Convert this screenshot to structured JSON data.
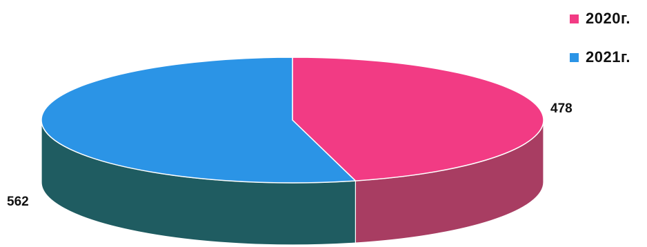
{
  "chart_data": {
    "type": "pie",
    "style": "3d",
    "title": "",
    "categories": [
      "2020г.",
      "2021г."
    ],
    "values": [
      478,
      562
    ],
    "data_labels": [
      "478",
      "562"
    ],
    "colors": {
      "top": [
        "#F23B84",
        "#2B94E6"
      ],
      "side": [
        "#A83D62",
        "#1F5C61"
      ]
    },
    "legend_position": "top-right"
  }
}
